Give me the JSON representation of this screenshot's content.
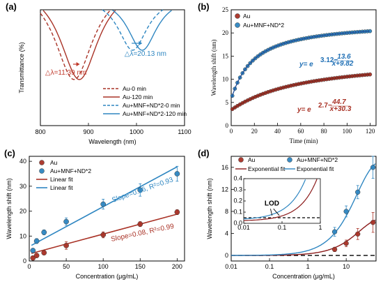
{
  "colors": {
    "red": "#a93226",
    "blue": "#2e86c1",
    "dark_red": "#8b1a1a"
  },
  "chart_data": [
    {
      "panel": "(a)",
      "type": "line",
      "xlabel": "Wavelength  (nm)",
      "ylabel": "Transmittance  (%)",
      "xlim": [
        800,
        1100
      ],
      "xticks": [
        "800",
        "900",
        "1000",
        "1100"
      ],
      "series": [
        {
          "name": "Au-0 min",
          "color": "#a93226",
          "dash": true,
          "dip_x": 870
        },
        {
          "name": "Au-120 min",
          "color": "#a93226",
          "dash": false,
          "dip_x": 881
        },
        {
          "name": "Au+MNF+ND*2-0 min",
          "color": "#2e86c1",
          "dash": true,
          "dip_x": 992
        },
        {
          "name": "Au+MNF+ND*2-120 min",
          "color": "#2e86c1",
          "dash": false,
          "dip_x": 1012
        }
      ],
      "annotations": [
        "△λ=11.39 nm",
        "△λ=20.13 nm"
      ]
    },
    {
      "panel": "(b)",
      "type": "scatter",
      "xlabel": "Time (min)",
      "ylabel": "Wavelength shift (nm)",
      "xlim": [
        0,
        125
      ],
      "ylim": [
        0,
        25
      ],
      "xticks": [
        0,
        20,
        40,
        60,
        80,
        100,
        120
      ],
      "yticks": [
        0,
        5,
        10,
        15,
        20,
        25
      ],
      "series": [
        {
          "name": "Au",
          "color": "#a93226",
          "fit": [
            2.7,
            44.7,
            30.3
          ]
        },
        {
          "name": "Au+MNF+ND*2",
          "color": "#2e86c1",
          "fit": [
            3.12,
            13.6,
            9.82
          ]
        }
      ],
      "equations": [
        {
          "base": "y= e",
          "exp_const": "2.7−",
          "num": "44.7",
          "den": "x+30.3"
        },
        {
          "base": "y= e",
          "exp_const": "3.12−",
          "num": "13.6",
          "den": "x+9.82"
        }
      ]
    },
    {
      "panel": "(c)",
      "type": "scatter",
      "xlabel": "Concentration  (μg/mL)",
      "ylabel": "Wavelength shift  (nm)",
      "xlim": [
        0,
        210
      ],
      "ylim": [
        0,
        42
      ],
      "xticks": [
        0,
        50,
        100,
        150,
        200
      ],
      "yticks": [
        0,
        10,
        20,
        30,
        40
      ],
      "series": [
        {
          "name": "Au",
          "color": "#a93226",
          "x": [
            5,
            10,
            20,
            50,
            100,
            150,
            200
          ],
          "y": [
            1.2,
            2.2,
            3.3,
            6.2,
            10.5,
            14.8,
            19.6
          ],
          "err": [
            0.6,
            0.7,
            0.8,
            1.5,
            1.2,
            1.0,
            1.0
          ]
        },
        {
          "name": "Au+MNF+ND*2",
          "color": "#2e86c1",
          "x": [
            5,
            10,
            20,
            50,
            100,
            150,
            200
          ],
          "y": [
            4.2,
            8.0,
            11.5,
            15.8,
            22.8,
            28.5,
            35.0
          ],
          "err": [
            0.8,
            1.0,
            1.0,
            1.5,
            2.0,
            2.5,
            3.0
          ]
        }
      ],
      "fits": [
        {
          "name": "Linear fit",
          "color": "#a93226",
          "slope": 0.08,
          "intercept": 2.8
        },
        {
          "name": "Linear fit",
          "color": "#2e86c1",
          "slope": 0.16,
          "intercept": 5.8
        }
      ],
      "annotations": [
        "Slope=0.16, R²=0.93",
        "Slope=0.08, R²=0.99"
      ]
    },
    {
      "panel": "(d)",
      "type": "scatter",
      "xlabel": "Concentration  (μg/mL)",
      "ylabel": "Wavelength shift  (nm)",
      "xscale": "log",
      "xlim": [
        0.01,
        60
      ],
      "ylim": [
        -1,
        18
      ],
      "xticks": [
        "0.01",
        "0.1",
        "1",
        "10"
      ],
      "yticks": [
        0,
        4,
        8,
        12,
        16
      ],
      "series": [
        {
          "name": "Au",
          "color": "#a93226",
          "x": [
            5,
            10,
            20,
            50
          ],
          "y": [
            1.1,
            2.2,
            3.9,
            6.0
          ],
          "err": [
            0.4,
            0.6,
            1.0,
            1.8
          ]
        },
        {
          "name": "Au+MNF+ND*2",
          "color": "#2e86c1",
          "x": [
            5,
            10,
            20,
            50
          ],
          "y": [
            4.3,
            8.0,
            11.5,
            16.0
          ],
          "err": [
            0.8,
            1.0,
            1.2,
            2.0
          ]
        }
      ],
      "fits": [
        {
          "name": "Exponential fit",
          "color": "#8b1a1a"
        },
        {
          "name": "Exponential fit",
          "color": "#2e86c1"
        }
      ],
      "inset": {
        "xlim": [
          0.01,
          1
        ],
        "ylim": [
          0,
          0.4
        ],
        "xticks": [
          "0.01",
          "0.1",
          "1"
        ],
        "yticks": [
          "0.0",
          "0.1",
          "0.2",
          "0.3",
          "0.4"
        ],
        "label": "LOD"
      }
    }
  ]
}
